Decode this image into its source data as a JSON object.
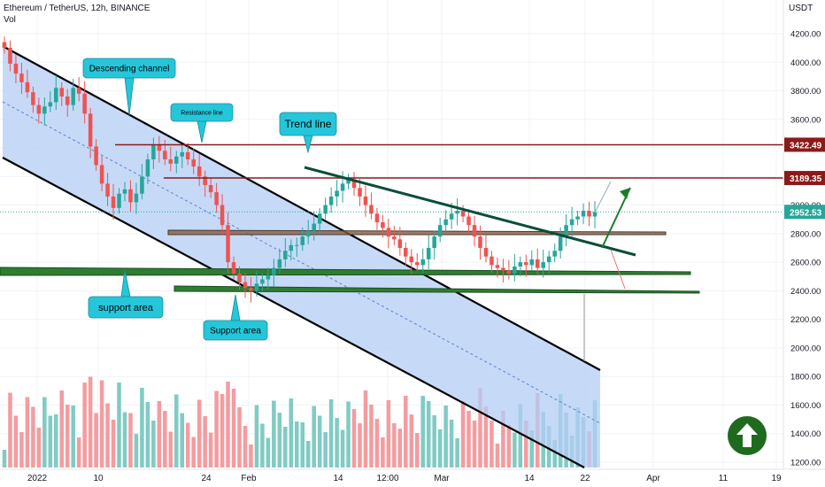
{
  "header": {
    "symbol": "Ethereum / TetherUS, 12h, BINANCE",
    "indicator": "Vol",
    "unit": "USDT"
  },
  "colors": {
    "up": "#26a69a",
    "down": "#ef5350",
    "vol_up": "#80cbc4",
    "vol_down": "#f49ca0",
    "channel_fill": "#b3cdf6",
    "resistance": "#8b1a1a",
    "support_zone": "#2e7d32",
    "trend": "#0b4d3b",
    "callout": "#26c6da",
    "last_price": "#26a69a"
  },
  "chart_data": {
    "type": "candlestick",
    "x_ticks": [
      "2022",
      "10",
      "24",
      "Feb",
      "14",
      "12:00",
      "Mar",
      "14",
      "22",
      "Apr",
      "11",
      "19"
    ],
    "y_ticks": [
      1200,
      1400,
      1600,
      1800,
      2000,
      2200,
      2400,
      2600,
      2800,
      3000,
      3200,
      3400,
      3600,
      3800,
      4000,
      4200
    ],
    "ylim": [
      1130,
      4320
    ],
    "price_labels": [
      {
        "value": 3422.49,
        "text": "3422.49"
      },
      {
        "value": 3189.35,
        "text": "3189.35"
      },
      {
        "value": 2952.53,
        "text": "2952.53"
      }
    ],
    "close_series": [
      4100,
      3990,
      3920,
      3860,
      3790,
      3700,
      3640,
      3690,
      3720,
      3820,
      3760,
      3700,
      3820,
      3780,
      3640,
      3410,
      3280,
      3150,
      3060,
      2980,
      3080,
      3110,
      3020,
      3080,
      3200,
      3320,
      3420,
      3380,
      3320,
      3290,
      3340,
      3370,
      3320,
      3270,
      3200,
      3140,
      3090,
      3000,
      2860,
      2600,
      2520,
      2460,
      2420,
      2400,
      2450,
      2480,
      2510,
      2560,
      2620,
      2680,
      2720,
      2720,
      2780,
      2820,
      2870,
      2940,
      3000,
      3060,
      3100,
      3150,
      3180,
      3120,
      3060,
      3000,
      2940,
      2880,
      2840,
      2780,
      2760,
      2700,
      2640,
      2600,
      2580,
      2620,
      2700,
      2780,
      2860,
      2900,
      2940,
      2960,
      2920,
      2860,
      2780,
      2700,
      2640,
      2580,
      2560,
      2540,
      2520,
      2570,
      2600,
      2580,
      2620,
      2560,
      2600,
      2640,
      2680,
      2780,
      2860,
      2900,
      2920,
      2960,
      2920,
      2952
    ],
    "annotations": [
      {
        "text": "Descending channel"
      },
      {
        "text": "Resistance line"
      },
      {
        "text": "Trend line"
      },
      {
        "text": "support area"
      },
      {
        "text": "Support area"
      }
    ]
  }
}
